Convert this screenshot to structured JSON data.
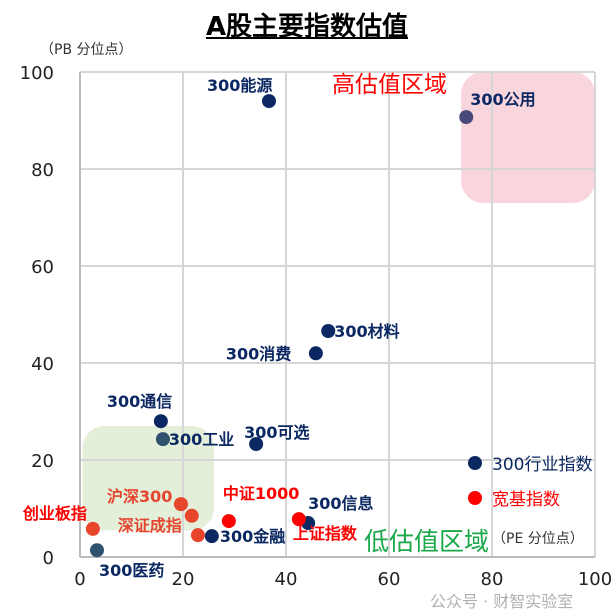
{
  "chart_data": {
    "type": "scatter",
    "title": "A股主要指数估值",
    "xlabel": "（PE 分位点）",
    "ylabel": "（PB 分位点）",
    "xlim": [
      0,
      100
    ],
    "ylim": [
      0,
      100
    ],
    "xticks": [
      0,
      20,
      40,
      60,
      80,
      100
    ],
    "yticks": [
      0,
      20,
      40,
      60,
      80,
      100
    ],
    "grid": true,
    "legend_placement": "bottom-right",
    "series": [
      {
        "name": "300行业指数",
        "color": "#0b2862",
        "points": [
          {
            "label": "300能源",
            "x": 36.7,
            "y": 94.0
          },
          {
            "label": "300公用",
            "x": 75.0,
            "y": 90.7
          },
          {
            "label": "300材料",
            "x": 48.2,
            "y": 46.6
          },
          {
            "label": "300消费",
            "x": 45.8,
            "y": 42.0
          },
          {
            "label": "300通信",
            "x": 15.7,
            "y": 28.0
          },
          {
            "label": "300工业",
            "x": 16.1,
            "y": 24.3
          },
          {
            "label": "300可选",
            "x": 34.2,
            "y": 23.3
          },
          {
            "label": "300信息",
            "x": 44.3,
            "y": 7.0
          },
          {
            "label": "300金融",
            "x": 25.6,
            "y": 4.3
          },
          {
            "label": "300医药",
            "x": 3.3,
            "y": 1.4
          }
        ]
      },
      {
        "name": "宽基指数",
        "color": "#ff0000",
        "points": [
          {
            "label": "沪深300",
            "x": 19.6,
            "y": 10.9
          },
          {
            "label": "深证成指",
            "x": 21.7,
            "y": 8.5
          },
          {
            "label": "",
            "x": 22.9,
            "y": 4.5
          },
          {
            "label": "创业板指",
            "x": 2.5,
            "y": 5.8
          },
          {
            "label": "中证1000",
            "x": 28.9,
            "y": 7.4
          },
          {
            "label": "上证指数",
            "x": 42.5,
            "y": 7.8
          }
        ]
      }
    ],
    "annotations": [
      {
        "text": "高估值区域",
        "color": "#ff0000",
        "region_x": [
          74,
          100
        ],
        "region_y": [
          73,
          100
        ],
        "fill": "#f9d3dc"
      },
      {
        "text": "低估值区域",
        "color": "#1aa84a",
        "region_x": [
          0.5,
          26
        ],
        "region_y": [
          5.5,
          27
        ],
        "fill": "#e2eed6"
      }
    ],
    "watermark": "公众号 · 财智实验室"
  }
}
